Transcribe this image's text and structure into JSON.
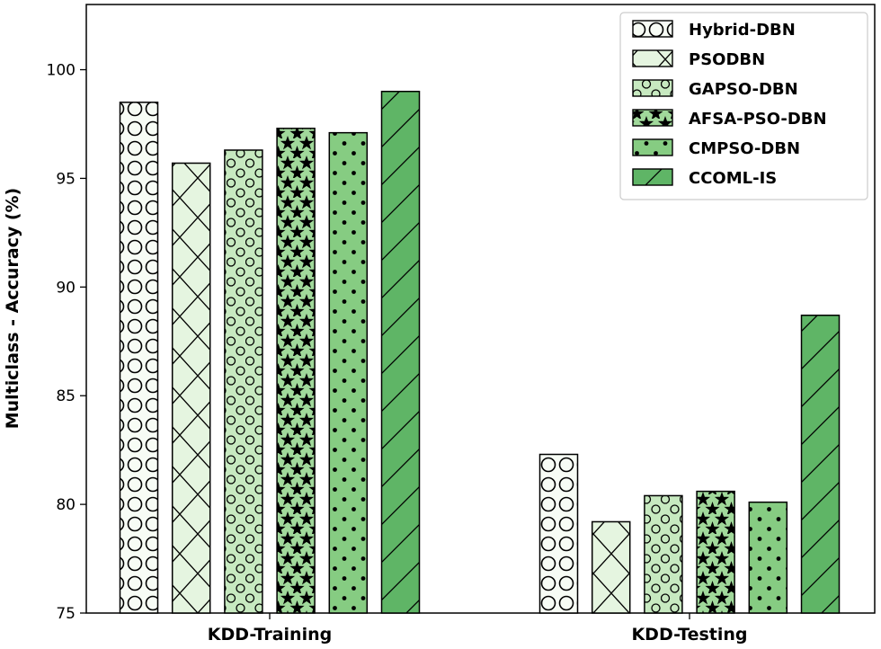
{
  "chart_data": {
    "type": "bar",
    "title": "",
    "xlabel": "",
    "ylabel": "Multiclass - Accuracy (%)",
    "ylim": [
      75,
      103
    ],
    "yticks": [
      75,
      80,
      85,
      90,
      95,
      100
    ],
    "categories": [
      "KDD-Training",
      "KDD-Testing"
    ],
    "legend_position": "top-right",
    "series": [
      {
        "name": "Hybrid-DBN",
        "values": [
          98.5,
          82.3
        ],
        "color": "#f7fcf5",
        "pattern": "circles"
      },
      {
        "name": "PSODBN",
        "values": [
          95.7,
          79.2
        ],
        "color": "#e5f5e0",
        "pattern": "crosshatch"
      },
      {
        "name": "GAPSO-DBN",
        "values": [
          96.3,
          80.4
        ],
        "color": "#c7e9c0",
        "pattern": "small-circles"
      },
      {
        "name": "AFSA-PSO-DBN",
        "values": [
          97.3,
          80.6
        ],
        "color": "#a1d99b",
        "pattern": "stars"
      },
      {
        "name": "CMPSO-DBN",
        "values": [
          97.1,
          80.1
        ],
        "color": "#86cc82",
        "pattern": "dots"
      },
      {
        "name": "CCOML-IS",
        "values": [
          99.0,
          88.7
        ],
        "color": "#5fb566",
        "pattern": "diagonal"
      }
    ]
  }
}
